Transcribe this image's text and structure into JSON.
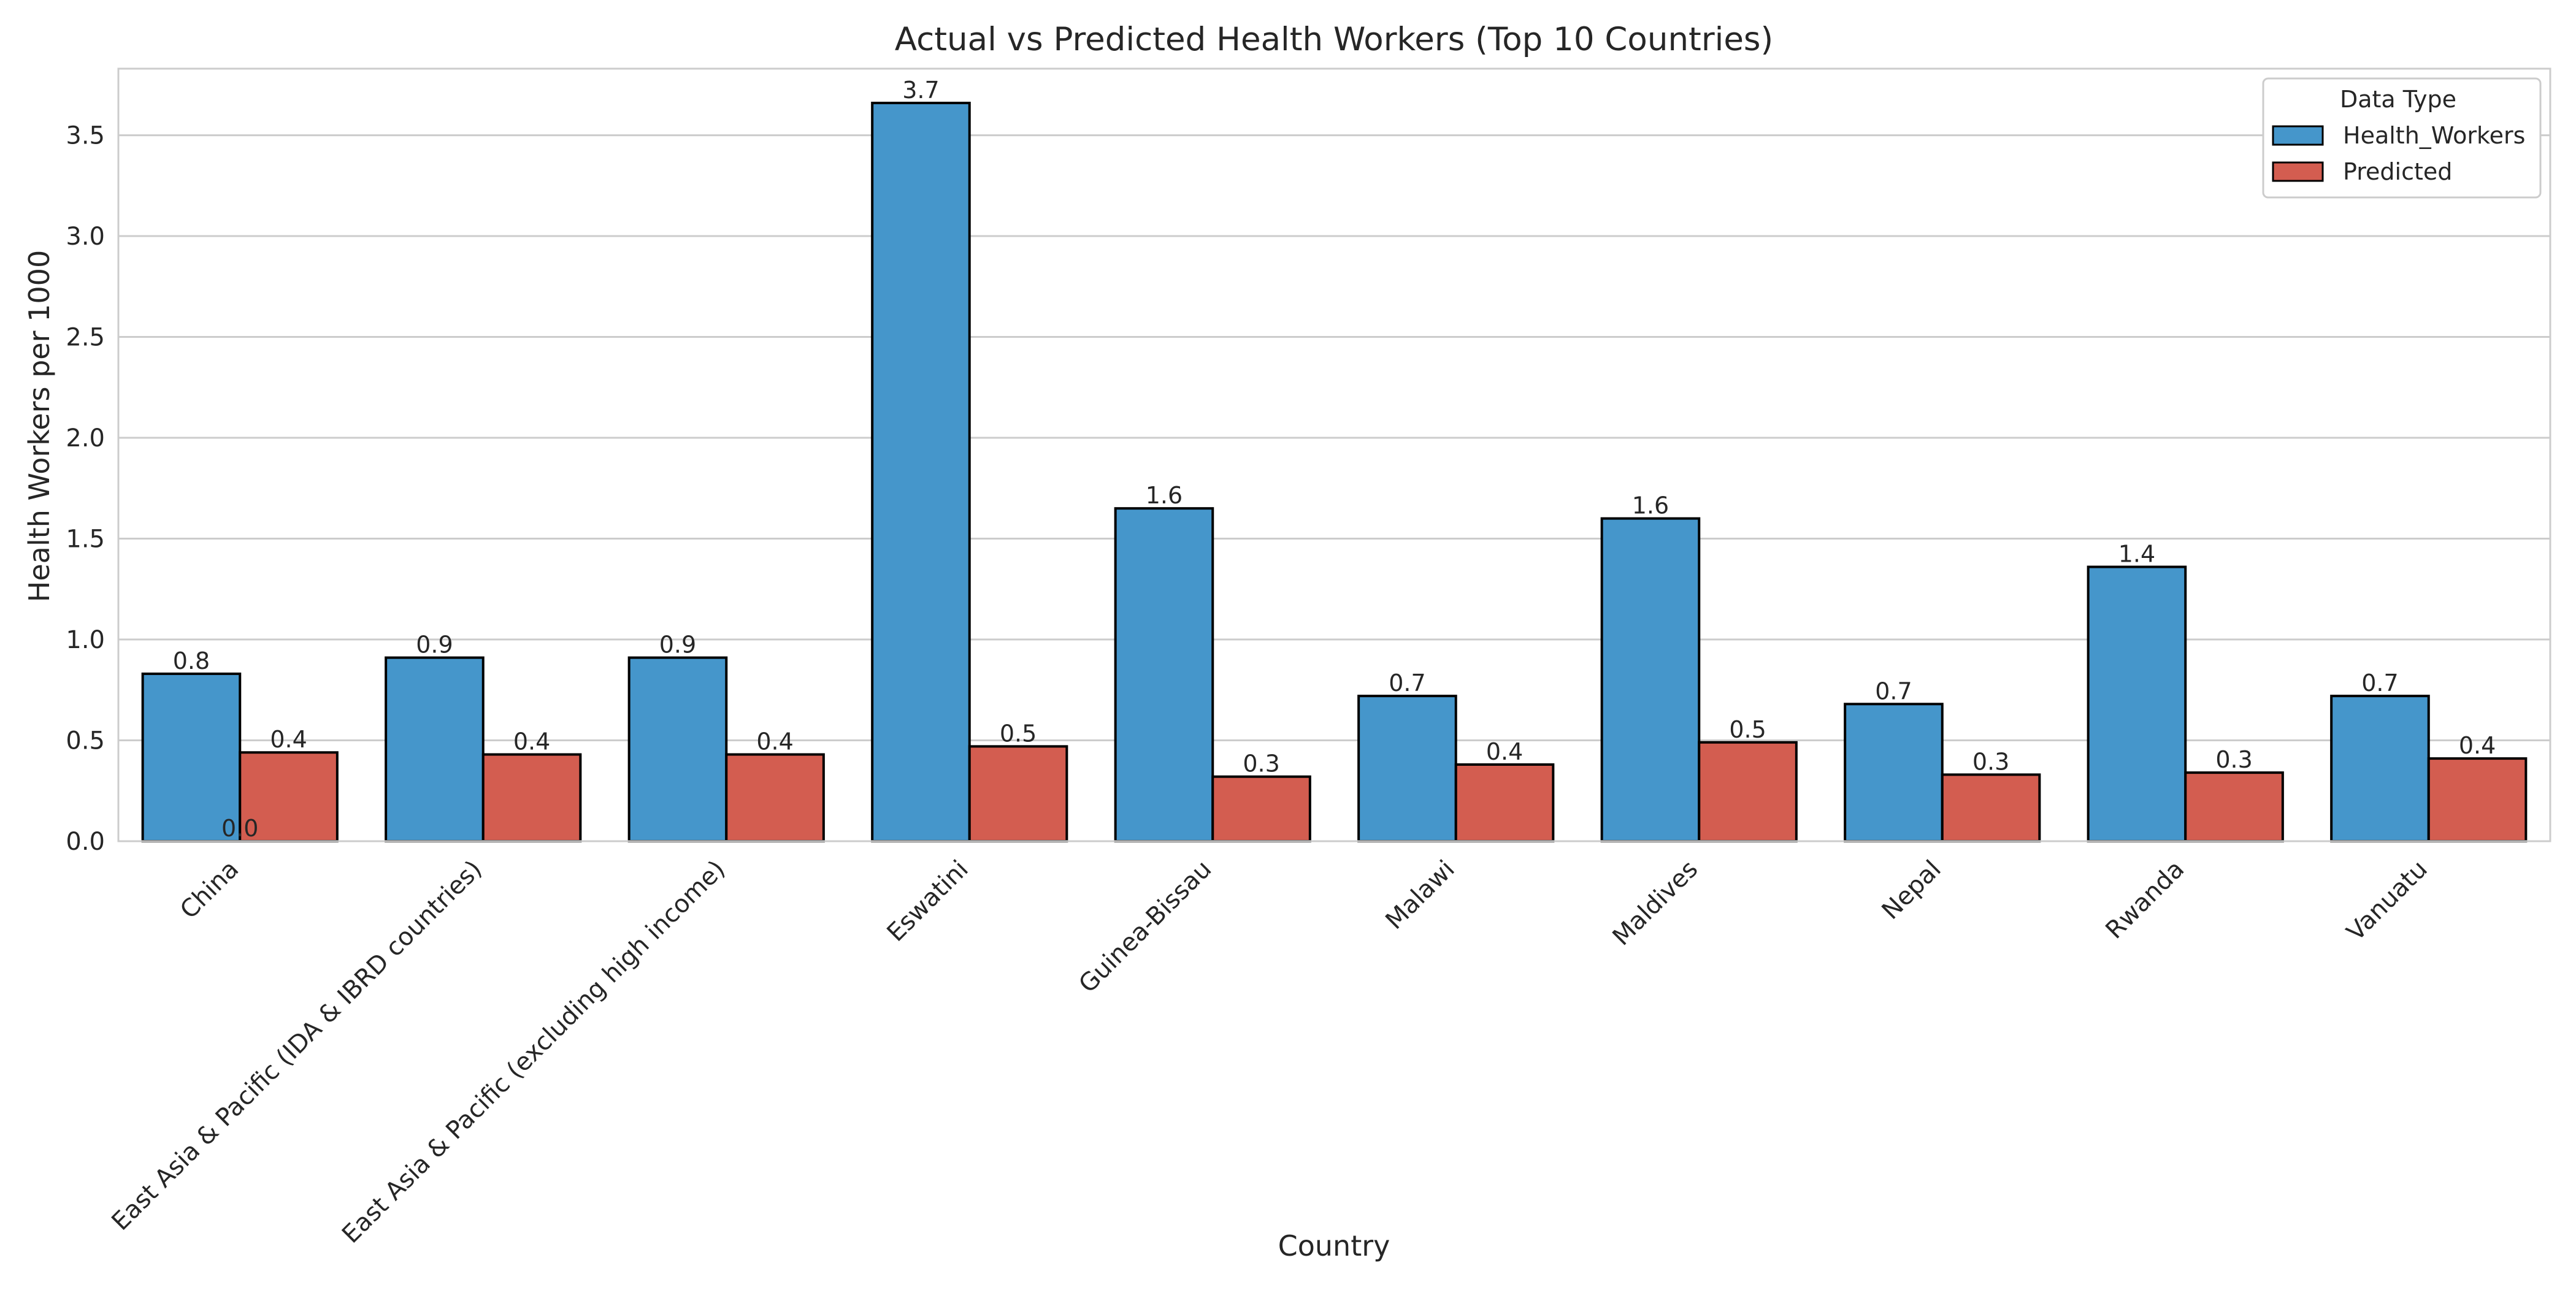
{
  "chart_data": {
    "type": "bar",
    "title": "Actual vs Predicted Health Workers (Top 10 Countries)",
    "xlabel": "Country",
    "ylabel": "Health Workers per 1000",
    "categories": [
      "China",
      "East Asia & Pacific (IDA & IBRD countries)",
      "East Asia & Pacific (excluding high income)",
      "Eswatini",
      "Guinea-Bissau",
      "Malawi",
      "Maldives",
      "Nepal",
      "Rwanda",
      "Vanuatu"
    ],
    "series": [
      {
        "name": "Health_Workers",
        "color": "#4596cb",
        "values": [
          0.83,
          0.91,
          0.91,
          3.66,
          1.65,
          0.72,
          1.6,
          0.68,
          1.36,
          0.72
        ],
        "value_labels": [
          "0.8",
          "0.9",
          "0.9",
          "3.7",
          "1.6",
          "0.7",
          "1.6",
          "0.7",
          "1.4",
          "0.7"
        ]
      },
      {
        "name": "Predicted",
        "color": "#d35d50",
        "values": [
          0.44,
          0.43,
          0.43,
          0.47,
          0.32,
          0.38,
          0.49,
          0.33,
          0.34,
          0.41
        ],
        "value_labels": [
          "0.4",
          "0.4",
          "0.4",
          "0.5",
          "0.3",
          "0.4",
          "0.5",
          "0.3",
          "0.3",
          "0.4"
        ]
      }
    ],
    "extra_annotations": [
      {
        "text": "0.0",
        "category": "China",
        "value": 0
      }
    ],
    "ylim": [
      0,
      3.83
    ],
    "yticks": [
      0.0,
      0.5,
      1.0,
      1.5,
      2.0,
      2.5,
      3.0,
      3.5
    ],
    "ytick_labels": [
      "0.0",
      "0.5",
      "1.0",
      "1.5",
      "2.0",
      "2.5",
      "3.0",
      "3.5"
    ],
    "grid": "horizontal",
    "legend": {
      "title": "Data Type",
      "placement": "top-right"
    }
  }
}
